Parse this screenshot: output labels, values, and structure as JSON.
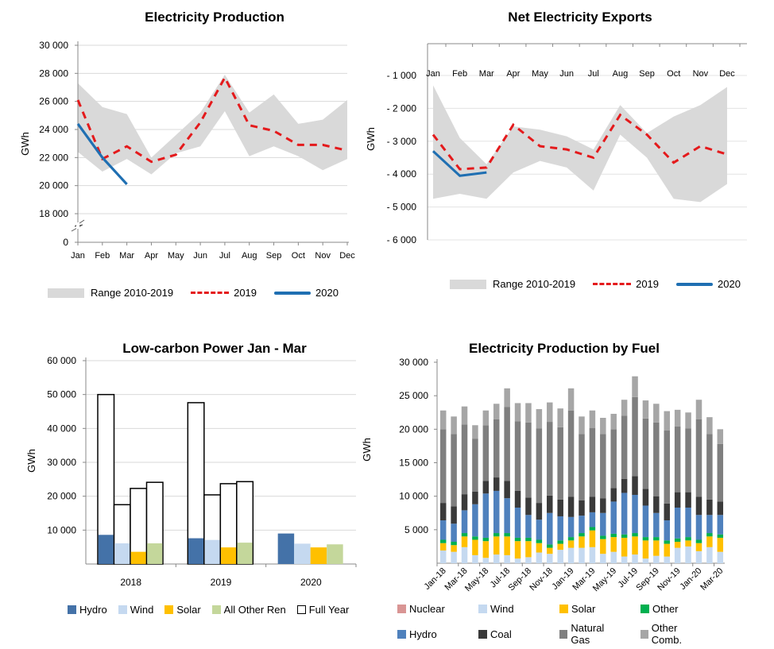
{
  "chart_data": [
    {
      "id": "production",
      "type": "area",
      "title": "Electricity Production",
      "ylabel": "GWh",
      "xlabel": "",
      "ylim": [
        18000,
        30000
      ],
      "axis_break": true,
      "yticks": [
        0,
        18000,
        20000,
        22000,
        24000,
        26000,
        28000,
        30000
      ],
      "ytick_labels": [
        "0",
        "18 000",
        "20 000",
        "22 000",
        "24 000",
        "26 000",
        "28 000",
        "30 000"
      ],
      "categories": [
        "Jan",
        "Feb",
        "Mar",
        "Apr",
        "May",
        "Jun",
        "Jul",
        "Aug",
        "Sep",
        "Oct",
        "Nov",
        "Dec"
      ],
      "grid": true,
      "legend_position": "bottom",
      "range": {
        "name": "Range 2010-2019",
        "color": "#d9d9d9",
        "low": [
          22400,
          21000,
          21900,
          20800,
          22300,
          22800,
          25300,
          22100,
          22800,
          22100,
          21100,
          21900
        ],
        "high": [
          27300,
          25600,
          25100,
          22000,
          23600,
          25200,
          27900,
          25200,
          26500,
          24400,
          24700,
          26100
        ]
      },
      "series": [
        {
          "name": "2019",
          "style": "dashed",
          "color": "#e41a1c",
          "values": [
            26100,
            21900,
            22800,
            21700,
            22200,
            24500,
            27700,
            24300,
            23900,
            22900,
            22900,
            22500
          ]
        },
        {
          "name": "2020",
          "style": "solid",
          "color": "#1f6fb2",
          "values": [
            24400,
            22000,
            20100,
            null,
            null,
            null,
            null,
            null,
            null,
            null,
            null,
            null
          ]
        }
      ]
    },
    {
      "id": "exports",
      "type": "area",
      "title": "Net Electricity Exports",
      "ylabel": "GWh",
      "xlabel": "",
      "ylim": [
        -6000,
        0
      ],
      "yticks": [
        -1000,
        -2000,
        -3000,
        -4000,
        -5000,
        -6000
      ],
      "ytick_labels": [
        "- 1 000",
        "- 2 000",
        "- 3 000",
        "- 4 000",
        "- 5 000",
        "- 6 000"
      ],
      "categories": [
        "Jan",
        "Feb",
        "Mar",
        "Apr",
        "May",
        "Jun",
        "Jul",
        "Aug",
        "Sep",
        "Oct",
        "Nov",
        "Dec"
      ],
      "xaxis_position": "top",
      "grid": true,
      "legend_position": "bottom",
      "range": {
        "name": "Range 2010-2019",
        "color": "#d9d9d9",
        "low": [
          -4750,
          -4600,
          -4750,
          -3950,
          -3600,
          -3800,
          -4500,
          -2800,
          -3500,
          -4750,
          -4850,
          -4300
        ],
        "high": [
          -1300,
          -2900,
          -3700,
          -2550,
          -2650,
          -2850,
          -3250,
          -1900,
          -2750,
          -2250,
          -1900,
          -1350
        ]
      },
      "series": [
        {
          "name": "2019",
          "style": "dashed",
          "color": "#e41a1c",
          "values": [
            -2800,
            -3850,
            -3800,
            -2500,
            -3150,
            -3250,
            -3500,
            -2200,
            -2800,
            -3650,
            -3150,
            -3400
          ]
        },
        {
          "name": "2020",
          "style": "solid",
          "color": "#1f6fb2",
          "values": [
            -3300,
            -4050,
            -3950,
            null,
            null,
            null,
            null,
            null,
            null,
            null,
            null,
            null
          ]
        }
      ]
    },
    {
      "id": "lowcarbon",
      "type": "bar",
      "title": "Low-carbon Power Jan - Mar",
      "ylabel": "GWh",
      "xlabel": "",
      "ylim": [
        0,
        60000
      ],
      "yticks": [
        10000,
        20000,
        30000,
        40000,
        50000,
        60000
      ],
      "ytick_labels": [
        "10 000",
        "20 000",
        "30 000",
        "40 000",
        "50 000",
        "60 000"
      ],
      "categories": [
        "2018",
        "2019",
        "2020"
      ],
      "grid": true,
      "legend_position": "bottom",
      "series": [
        {
          "name": "Hydro",
          "color": "#4472a8",
          "values": [
            8600,
            7600,
            9000
          ]
        },
        {
          "name": "Wind",
          "color": "#c5d9f0",
          "values": [
            6100,
            7100,
            6000
          ]
        },
        {
          "name": "Solar",
          "color": "#ffc000",
          "values": [
            3600,
            4900,
            4900
          ]
        },
        {
          "name": "All Other Ren",
          "color": "#c4d79b",
          "values": [
            6100,
            6300,
            5800
          ]
        },
        {
          "name": "Full Year",
          "color": "#ffffff",
          "outline": "#000000",
          "values": [
            [
              50000,
              17500,
              22300,
              24100
            ],
            [
              47600,
              20400,
              23700,
              24300
            ],
            [
              null,
              null,
              null,
              null
            ]
          ]
        }
      ]
    },
    {
      "id": "byfuel",
      "type": "bar",
      "stacked": true,
      "title": "Electricity Production by Fuel",
      "ylabel": "GWh",
      "xlabel": "",
      "ylim": [
        0,
        30000
      ],
      "yticks": [
        5000,
        10000,
        15000,
        20000,
        25000,
        30000
      ],
      "ytick_labels": [
        "5 000",
        "10 000",
        "15 000",
        "20 000",
        "25 000",
        "30 000"
      ],
      "categories": [
        "Jan-18",
        "Feb-18",
        "Mar-18",
        "Apr-18",
        "May-18",
        "Jun-18",
        "Jul-18",
        "Aug-18",
        "Sep-18",
        "Oct-18",
        "Nov-18",
        "Dec-18",
        "Jan-19",
        "Feb-19",
        "Mar-19",
        "Apr-19",
        "May-19",
        "Jun-19",
        "Jul-19",
        "Aug-19",
        "Sep-19",
        "Oct-19",
        "Nov-19",
        "Dec-19",
        "Jan-20",
        "Feb-20",
        "Mar-20"
      ],
      "xtick_labels": [
        "Jan-18",
        "Mar-18",
        "May-18",
        "Jul-18",
        "Sep-18",
        "Nov-18",
        "Jan-19",
        "Mar-19",
        "May-19",
        "Jul-19",
        "Sep-19",
        "Nov-19",
        "Jan-20",
        "Mar-20"
      ],
      "grid": false,
      "legend_position": "bottom",
      "series": [
        {
          "name": "Nuclear",
          "color": "#d99594",
          "values": [
            0,
            0,
            0,
            0,
            0,
            0,
            0,
            0,
            0,
            0,
            0,
            0,
            0,
            0,
            0,
            0,
            0,
            0,
            0,
            0,
            0,
            0,
            0,
            0,
            0,
            0,
            0
          ]
        },
        {
          "name": "Wind",
          "color": "#c5d9f0",
          "values": [
            1900,
            1700,
            2400,
            1200,
            800,
            1300,
            1200,
            700,
            900,
            1600,
            1400,
            2000,
            2300,
            2300,
            2400,
            1400,
            1700,
            1000,
            1300,
            700,
            1100,
            1000,
            2300,
            2500,
            1800,
            2400,
            1700
          ]
        },
        {
          "name": "Solar",
          "color": "#ffc000",
          "values": [
            1100,
            1000,
            1600,
            2300,
            2500,
            2700,
            2800,
            2600,
            2400,
            1400,
            900,
            900,
            1100,
            1700,
            2500,
            2200,
            2200,
            2800,
            2700,
            2700,
            2300,
            1900,
            900,
            900,
            1200,
            1600,
            2100
          ]
        },
        {
          "name": "Other",
          "color": "#00b050",
          "values": [
            500,
            500,
            500,
            500,
            500,
            500,
            500,
            500,
            500,
            500,
            500,
            500,
            500,
            500,
            500,
            500,
            500,
            500,
            500,
            500,
            500,
            500,
            500,
            500,
            500,
            500,
            500
          ]
        },
        {
          "name": "Hydro",
          "color": "#4f81bd",
          "values": [
            2900,
            2700,
            3400,
            4800,
            6600,
            6300,
            5200,
            4500,
            3400,
            3000,
            4700,
            3600,
            3000,
            2600,
            2200,
            3400,
            4800,
            6200,
            5700,
            4700,
            3600,
            3000,
            4600,
            4400,
            3700,
            2700,
            2900
          ]
        },
        {
          "name": "Coal",
          "color": "#3a3a3a",
          "values": [
            2600,
            2600,
            2400,
            1900,
            1900,
            2000,
            2600,
            2500,
            2600,
            2500,
            2600,
            2500,
            3000,
            2300,
            2300,
            2200,
            2000,
            2100,
            2800,
            2500,
            2500,
            2500,
            2300,
            2300,
            2700,
            2300,
            2000
          ]
        },
        {
          "name": "Natural Gas",
          "color": "#7f7f7f",
          "values": [
            11000,
            10800,
            10400,
            7900,
            8300,
            8700,
            11000,
            10400,
            11200,
            11100,
            11000,
            10800,
            12900,
            9900,
            10300,
            9600,
            8800,
            9400,
            11800,
            10500,
            11000,
            10900,
            9800,
            9500,
            11600,
            9800,
            8600
          ]
        },
        {
          "name": "Other Comb.",
          "color": "#a6a6a6",
          "values": [
            2800,
            2600,
            2700,
            2000,
            2200,
            2300,
            2800,
            2700,
            2900,
            2900,
            2900,
            2800,
            3300,
            2600,
            2600,
            2400,
            2300,
            2400,
            3100,
            2700,
            2800,
            2900,
            2500,
            2400,
            2900,
            2500,
            2200
          ]
        }
      ]
    }
  ],
  "legends": {
    "line_legend": {
      "range": "Range 2010-2019",
      "y2019": "2019",
      "y2020": "2020"
    }
  }
}
